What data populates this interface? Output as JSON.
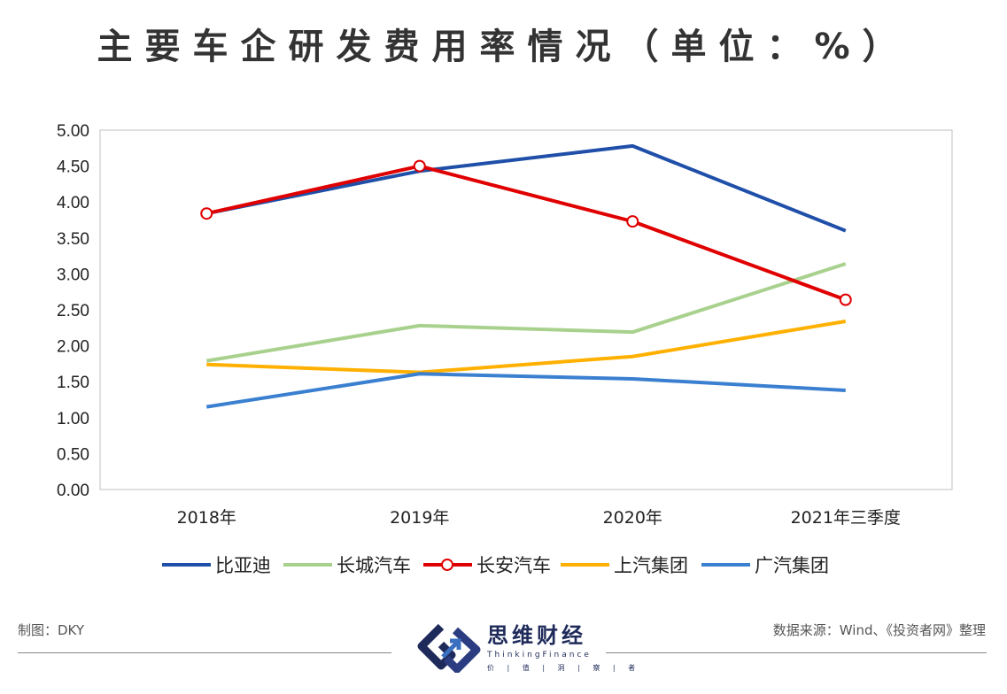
{
  "chart_data": {
    "type": "line",
    "title": "主要车企研发费用率情况（单位：%）",
    "categories": [
      "2018年",
      "2019年",
      "2020年",
      "2021年三季度"
    ],
    "ylim": [
      0,
      5
    ],
    "yticks": [
      "0.00",
      "0.50",
      "1.00",
      "1.50",
      "2.00",
      "2.50",
      "3.00",
      "3.50",
      "4.00",
      "4.50",
      "5.00"
    ],
    "grid": false,
    "legend": "bottom",
    "series": [
      {
        "name": "比亚迪",
        "color": "#1f4fa8",
        "markers": false,
        "values": [
          3.84,
          4.43,
          4.78,
          3.6
        ]
      },
      {
        "name": "长城汽车",
        "color": "#a9d18e",
        "markers": false,
        "values": [
          1.79,
          2.28,
          2.19,
          3.14
        ]
      },
      {
        "name": "长安汽车",
        "color": "#e00000",
        "markers": true,
        "values": [
          3.84,
          4.5,
          3.73,
          2.64
        ]
      },
      {
        "name": "上汽集团",
        "color": "#ffb000",
        "markers": false,
        "values": [
          1.74,
          1.63,
          1.85,
          2.34
        ]
      },
      {
        "name": "广汽集团",
        "color": "#3a7fd0",
        "markers": false,
        "values": [
          1.15,
          1.61,
          1.54,
          1.38
        ]
      }
    ]
  },
  "footer": {
    "maker": "制图：DKY",
    "source": "数据来源：Wind、《投资者网》整理",
    "logo_name": "思维财经",
    "logo_en": "ThinkingFinance",
    "logo_slogan": "价 | 值 | 洞 | 察 | 者"
  }
}
